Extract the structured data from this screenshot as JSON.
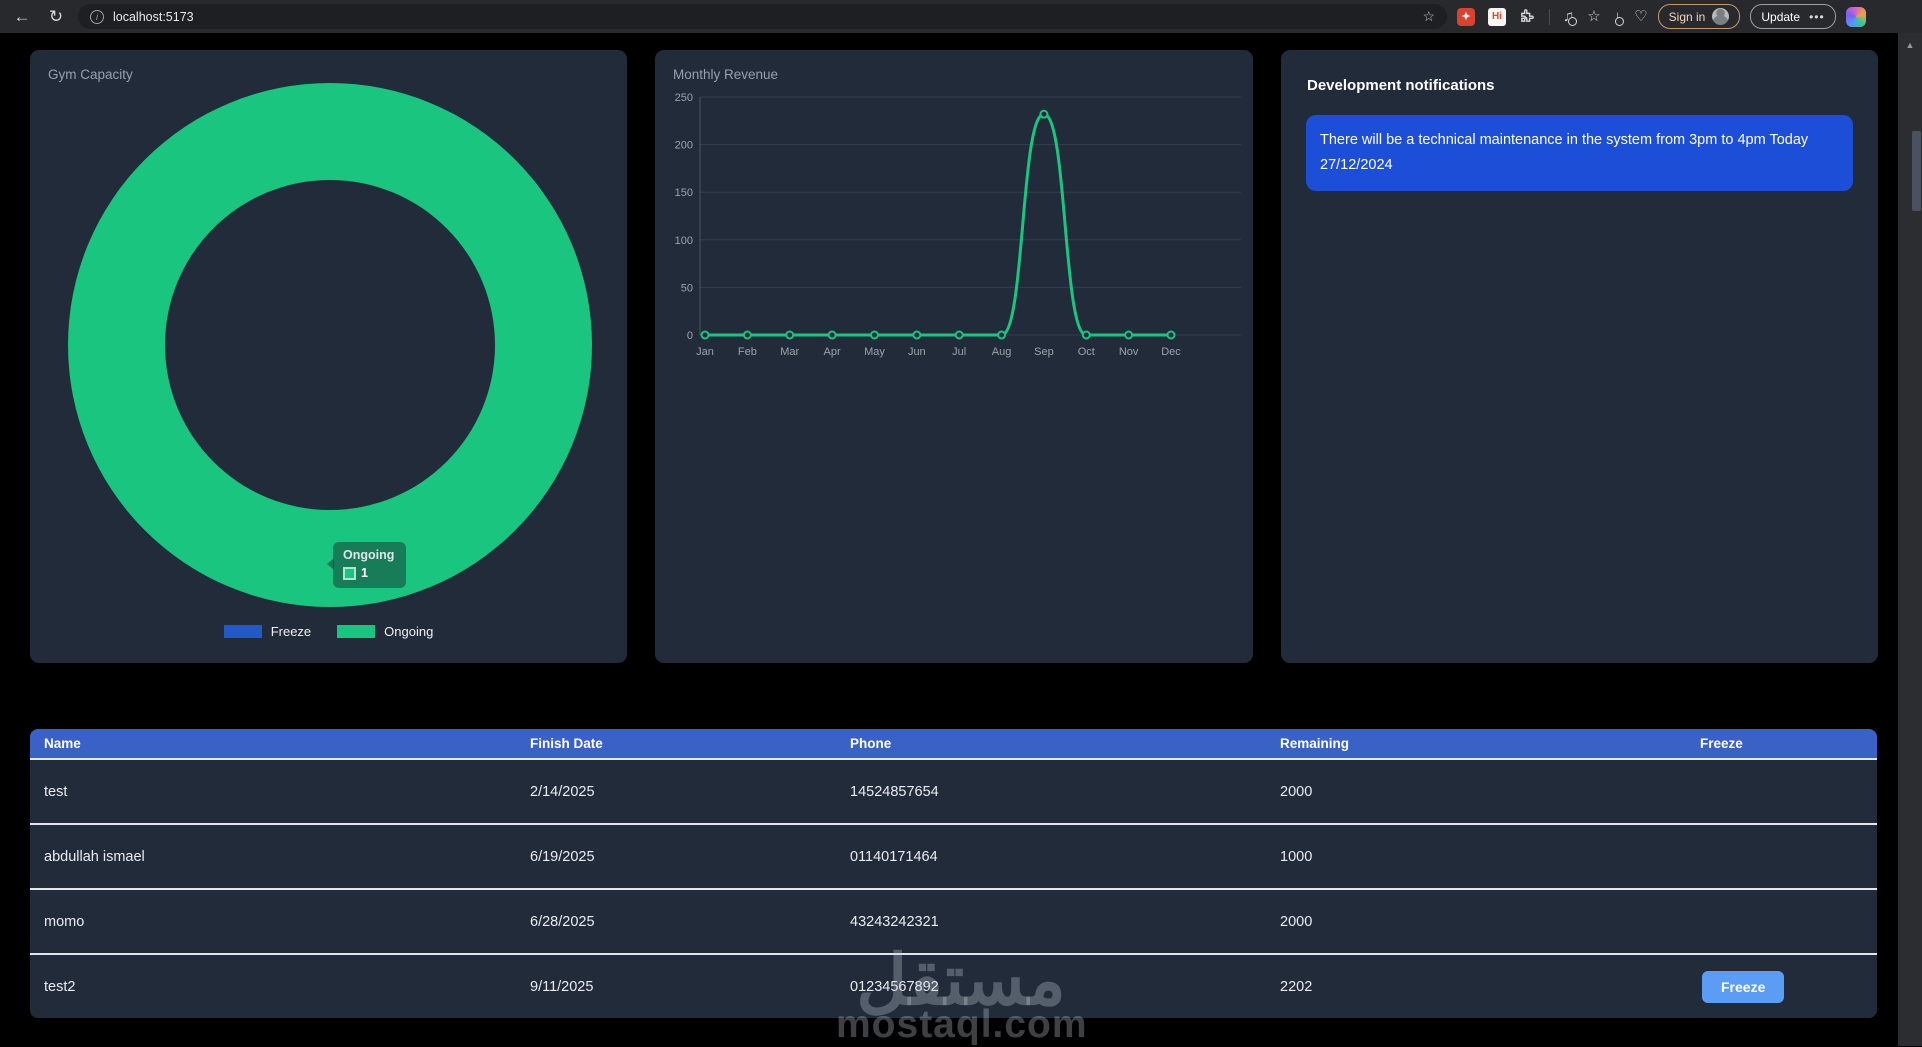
{
  "browser": {
    "url": "localhost:5173",
    "sign_in_label": "Sign in",
    "update_label": "Update",
    "update_menu_dots": "•••",
    "extensions": {
      "hi_label": "Hi",
      "red_glyph": "✦"
    },
    "icons": {
      "back": "←",
      "reload": "↻",
      "info": "i",
      "bookmark_star": "☆",
      "music": "♫",
      "shooting_star": "☆",
      "download": "↓",
      "heart_pulse": "♡",
      "scroll_up": "▲"
    }
  },
  "cards": {
    "gym_capacity": {
      "title": "Gym Capacity",
      "tooltip": {
        "title": "Ongoing",
        "value": "1"
      }
    },
    "monthly_revenue": {
      "title": "Monthly Revenue"
    },
    "notifications": {
      "title": "Development notifications",
      "message": "There will be a technical maintenance in the system from 3pm to 4pm Today 27/12/2024"
    }
  },
  "chart_data": [
    {
      "type": "pie",
      "title": "Gym Capacity",
      "donut": true,
      "labels": [
        "Freeze",
        "Ongoing"
      ],
      "values": [
        0,
        1
      ],
      "colors": [
        "#2458C5",
        "#1AC57F"
      ],
      "legend_position": "bottom",
      "tooltip_shown": {
        "label": "Ongoing",
        "value": 1
      }
    },
    {
      "type": "line",
      "title": "Monthly Revenue",
      "categories": [
        "Jan",
        "Feb",
        "Mar",
        "Apr",
        "May",
        "Jun",
        "Jul",
        "Aug",
        "Sep",
        "Oct",
        "Nov",
        "Dec"
      ],
      "values": [
        0,
        0,
        0,
        0,
        0,
        0,
        0,
        0,
        232,
        0,
        0,
        0
      ],
      "ylim": [
        0,
        250
      ],
      "yticks": [
        0,
        50,
        100,
        150,
        200,
        250
      ],
      "line_color": "#1AC57F",
      "grid": true,
      "legend_position": "none"
    }
  ],
  "table": {
    "columns": [
      "Name",
      "Finish Date",
      "Phone",
      "Remaining",
      "Freeze"
    ],
    "rows": [
      {
        "name": "test",
        "finish_date": "2/14/2025",
        "phone": "14524857654",
        "remaining": "2000",
        "freeze": ""
      },
      {
        "name": "abdullah ismael",
        "finish_date": "6/19/2025",
        "phone": "01140171464",
        "remaining": "1000",
        "freeze": ""
      },
      {
        "name": "momo",
        "finish_date": "6/28/2025",
        "phone": "43243242321",
        "remaining": "2000",
        "freeze": ""
      },
      {
        "name": "test2",
        "finish_date": "9/11/2025",
        "phone": "01234567892",
        "remaining": "2202",
        "freeze": "Freeze"
      }
    ]
  },
  "watermark": {
    "logo": "مستقل",
    "domain": "mostaql.com"
  },
  "colors": {
    "page_bg": "#000000",
    "card_bg": "#222B3A",
    "green": "#1AC57F",
    "legend_blue": "#2458C5",
    "table_header_blue": "#3A62C6",
    "notification_blue": "#1C4ED8",
    "freeze_button_blue": "#5B9CF5"
  }
}
